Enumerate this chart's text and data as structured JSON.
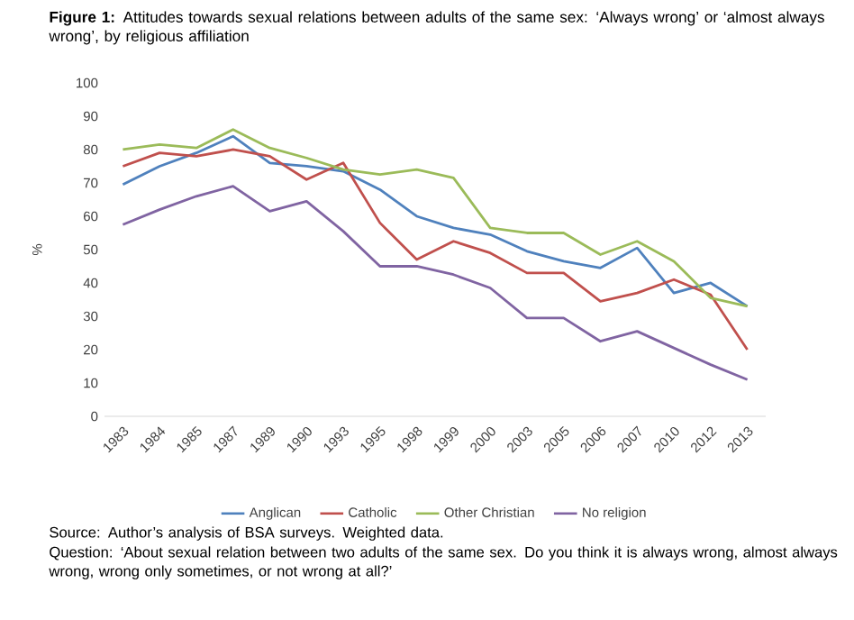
{
  "chart_data": {
    "type": "line",
    "title": "**Figure 1:** Attitudes towards sexual relations between adults of the same sex: ‘Always wrong’ or ‘almost always wrong’, by religious affiliation",
    "ylabel": "%",
    "categories": [
      "1983",
      "1984",
      "1985",
      "1987",
      "1989",
      "1990",
      "1993",
      "1995",
      "1998",
      "1999",
      "2000",
      "2003",
      "2005",
      "2006",
      "2007",
      "2010",
      "2012",
      "2013"
    ],
    "series": [
      {
        "name": "Anglican",
        "color": "#4f81bd",
        "values": [
          69.5,
          75,
          79,
          84,
          76,
          75,
          73.5,
          68,
          60,
          56.5,
          54.5,
          49.5,
          46.5,
          44.5,
          50.5,
          37,
          40,
          33
        ]
      },
      {
        "name": "Catholic",
        "color": "#c0504d",
        "values": [
          75,
          79,
          78,
          80,
          78,
          71,
          76,
          58,
          47,
          52.5,
          49,
          43,
          43,
          34.5,
          37,
          41,
          36.5,
          20
        ]
      },
      {
        "name": "Other Christian",
        "color": "#9bbb59",
        "values": [
          80,
          81.5,
          80.5,
          86,
          80.5,
          77.5,
          74,
          72.5,
          74,
          71.5,
          56.5,
          55,
          55,
          48.5,
          52.5,
          46.5,
          35.5,
          33
        ]
      },
      {
        "name": "No religion",
        "color": "#8064a2",
        "values": [
          57.5,
          62,
          66,
          69,
          61.5,
          64.5,
          55.5,
          45,
          45,
          42.5,
          38.5,
          29.5,
          29.5,
          22.5,
          25.5,
          20.5,
          15.5,
          11
        ]
      }
    ],
    "ylim": [
      0,
      100
    ],
    "yticks": [
      0,
      10,
      20,
      30,
      40,
      50,
      60,
      70,
      80,
      90,
      100
    ],
    "grid": false,
    "legend": "bottom",
    "annotations": [
      "Source: Author’s analysis of BSA surveys. Weighted data.",
      "Question: ‘About sexual relation between two adults of the same sex. Do you think it is always wrong, almost always wrong, wrong only sometimes, or not wrong at all?’"
    ]
  }
}
